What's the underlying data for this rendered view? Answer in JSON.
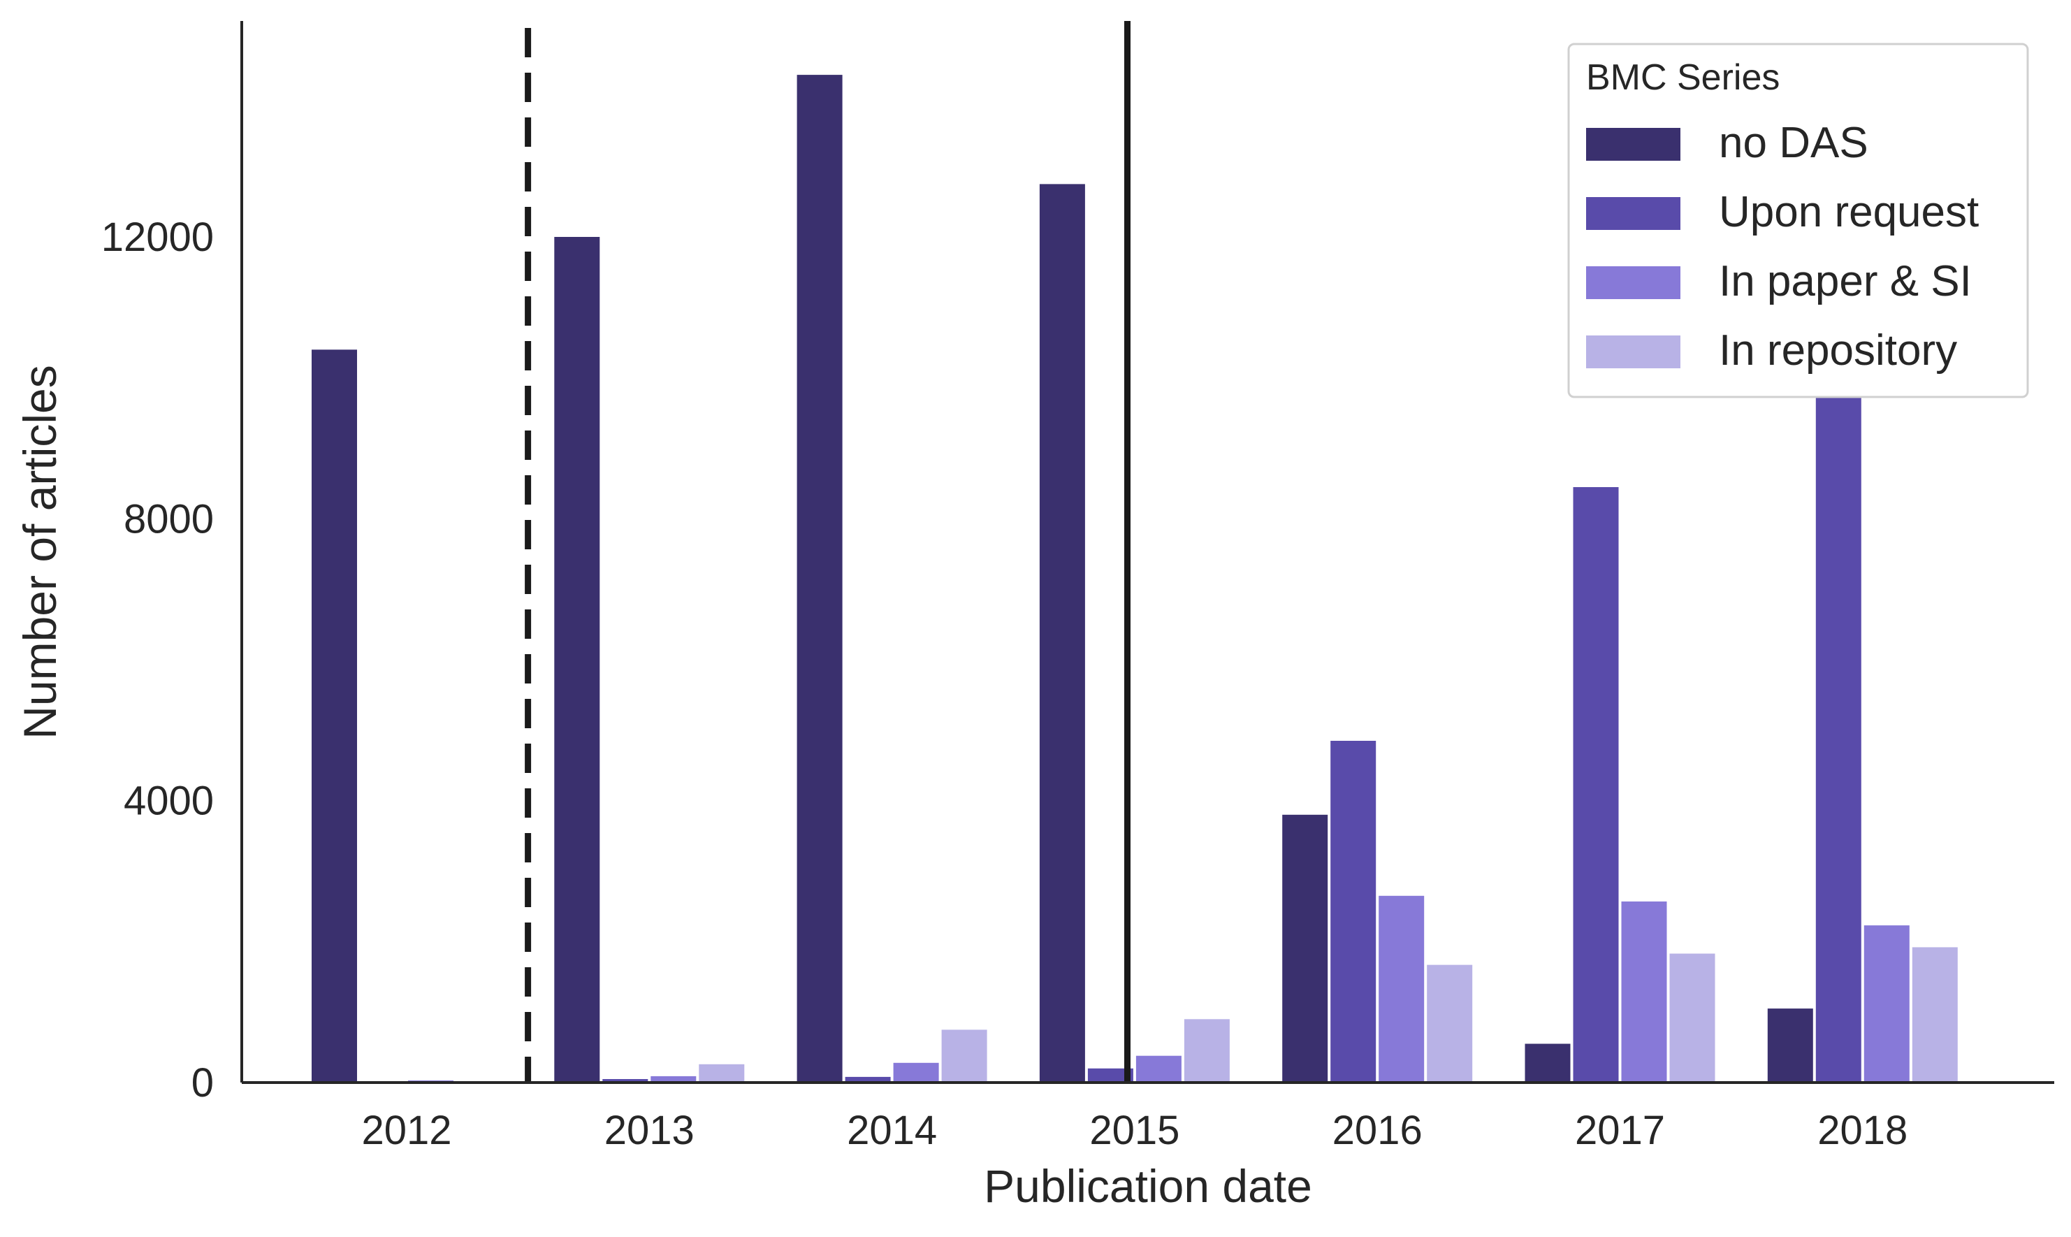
{
  "chart_data": {
    "type": "bar",
    "xlabel": "Publication date",
    "ylabel": "Number of articles",
    "categories": [
      "2012",
      "2013",
      "2014",
      "2015",
      "2016",
      "2017",
      "2018"
    ],
    "ylim": [
      0,
      15000
    ],
    "yticks": [
      0,
      4000,
      8000,
      12000
    ],
    "grid": false,
    "legend": {
      "title": "BMC Series",
      "placement": "top-right"
    },
    "series": [
      {
        "name": "no DAS",
        "color": "#3a306e",
        "values": [
          10400,
          12000,
          14300,
          12750,
          3800,
          550,
          1050
        ]
      },
      {
        "name": "Upon request",
        "color": "#594baa",
        "values": [
          10,
          50,
          80,
          200,
          4850,
          8450,
          9850
        ]
      },
      {
        "name": "In paper & SI",
        "color": "#8779d8",
        "values": [
          30,
          90,
          280,
          380,
          2650,
          2570,
          2230
        ]
      },
      {
        "name": "In repository",
        "color": "#b8b2e6",
        "values": [
          10,
          260,
          750,
          900,
          1670,
          1830,
          1920
        ]
      }
    ],
    "reference_lines": [
      {
        "style": "dashed"
      },
      {
        "style": "solid"
      }
    ]
  }
}
